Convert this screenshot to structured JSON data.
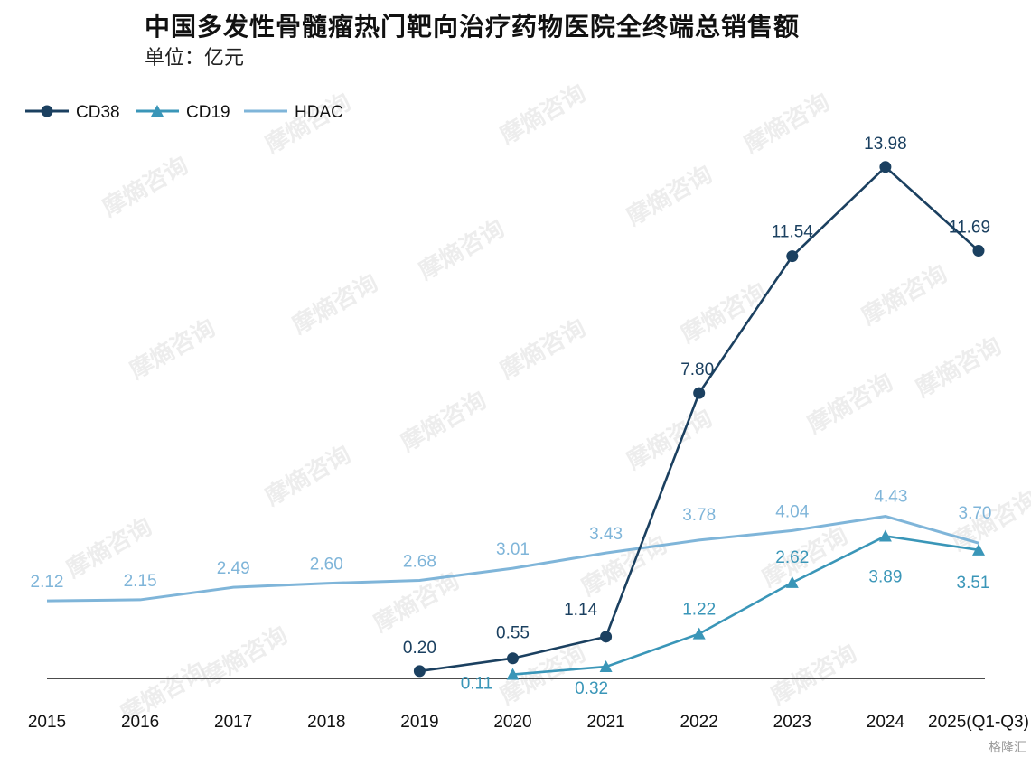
{
  "title": "中国多发性骨髓瘤热门靶向治疗药物医院全终端总销售额",
  "subtitle": "单位：亿元",
  "watermark": "摩熵咨询",
  "source_mark": "格隆汇",
  "chart_data": {
    "type": "line",
    "title": "中国多发性骨髓瘤热门靶向治疗药物医院全终端总销售额",
    "ylabel": "",
    "xlabel": "",
    "categories": [
      "2015",
      "2016",
      "2017",
      "2018",
      "2019",
      "2020",
      "2021",
      "2022",
      "2023",
      "2024",
      "2025(Q1-Q3)"
    ],
    "ylim": [
      0,
      15
    ],
    "grid": false,
    "legend": "top-left",
    "series": [
      {
        "name": "CD38",
        "color": "#1b4060",
        "marker": "circle",
        "values": [
          null,
          null,
          null,
          null,
          0.2,
          0.55,
          1.14,
          7.8,
          11.54,
          13.98,
          11.69
        ],
        "labels": [
          null,
          null,
          null,
          null,
          "0.20",
          "0.55",
          "1.14",
          "7.80",
          "11.54",
          "13.98",
          "11.69"
        ]
      },
      {
        "name": "CD19",
        "color": "#3a96b8",
        "marker": "triangle",
        "values": [
          null,
          null,
          null,
          null,
          null,
          0.11,
          0.32,
          1.22,
          2.62,
          3.89,
          3.51
        ],
        "labels": [
          null,
          null,
          null,
          null,
          null,
          "0.11",
          "0.32",
          "1.22",
          "2.62",
          "3.89",
          "3.51"
        ]
      },
      {
        "name": "HDAC",
        "color": "#7fb5d9",
        "marker": "none",
        "values": [
          2.12,
          2.15,
          2.49,
          2.6,
          2.68,
          3.01,
          3.43,
          3.78,
          4.04,
          4.43,
          3.7
        ],
        "labels": [
          "2.12",
          "2.15",
          "2.49",
          "2.60",
          "2.68",
          "3.01",
          "3.43",
          "3.78",
          "4.04",
          "4.43",
          "3.70"
        ]
      }
    ]
  }
}
